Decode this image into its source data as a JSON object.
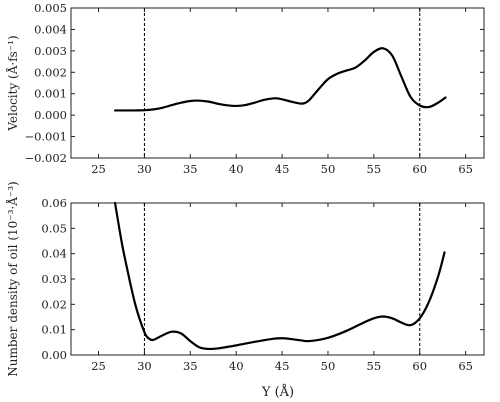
{
  "chart_data": [
    {
      "type": "line",
      "ylabel": "Velocity (Å·fs⁻¹)",
      "xlabel": "",
      "xlim": [
        22,
        67
      ],
      "ylim": [
        -0.002,
        0.005
      ],
      "xticks": [
        "25",
        "30",
        "35",
        "40",
        "45",
        "50",
        "55",
        "60",
        "65"
      ],
      "yticks": [
        "−0.002",
        "−0.001",
        "0.000",
        "0.001",
        "0.002",
        "0.003",
        "0.004",
        "0.005"
      ],
      "vertical_lines": [
        30,
        60
      ],
      "series": [
        {
          "x": [
            26.8,
            28,
            29,
            30,
            31,
            32,
            33,
            34,
            35,
            35.8,
            37,
            38,
            39,
            40,
            41,
            42,
            43,
            44,
            44.5,
            45,
            46,
            47,
            47.5,
            48,
            49,
            50,
            51,
            52,
            53,
            54,
            55,
            56,
            57,
            58,
            59,
            60,
            61,
            62,
            62.8
          ],
          "y": [
            0.00022,
            0.00022,
            0.00022,
            0.00023,
            0.00027,
            0.00035,
            0.00047,
            0.00058,
            0.00066,
            0.00068,
            0.00063,
            0.00053,
            0.00046,
            0.00043,
            0.00047,
            0.00058,
            0.00071,
            0.00078,
            0.00078,
            0.00074,
            0.00063,
            0.00054,
            0.00057,
            0.00072,
            0.00122,
            0.00168,
            0.00193,
            0.00208,
            0.00222,
            0.00255,
            0.00295,
            0.00312,
            0.00278,
            0.0018,
            0.00085,
            0.00045,
            0.00038,
            0.00058,
            0.00082
          ]
        }
      ]
    },
    {
      "type": "line",
      "ylabel": "Number density of oil (10⁻³·Å⁻³)",
      "xlabel": "Y (Å)",
      "xlim": [
        22,
        67
      ],
      "ylim": [
        0,
        0.06
      ],
      "xticks": [
        "25",
        "30",
        "35",
        "40",
        "45",
        "50",
        "55",
        "60",
        "65"
      ],
      "yticks": [
        "0.00",
        "0.01",
        "0.02",
        "0.03",
        "0.04",
        "0.05",
        "0.06"
      ],
      "vertical_lines": [
        30,
        60
      ],
      "series": [
        {
          "x": [
            26.8,
            27.5,
            28,
            29,
            30,
            30.5,
            31,
            32,
            33,
            34,
            35,
            36,
            37,
            38,
            40,
            42,
            44,
            45,
            46,
            47,
            48,
            50,
            52,
            54,
            55,
            56,
            57,
            58,
            59,
            60,
            61,
            62,
            62.7
          ],
          "y": [
            0.06,
            0.045,
            0.036,
            0.02,
            0.009,
            0.0065,
            0.006,
            0.0078,
            0.0092,
            0.0085,
            0.0055,
            0.003,
            0.0024,
            0.0026,
            0.0038,
            0.0052,
            0.0064,
            0.0066,
            0.0063,
            0.0058,
            0.0055,
            0.0068,
            0.0095,
            0.013,
            0.0145,
            0.0152,
            0.0145,
            0.0128,
            0.0118,
            0.0145,
            0.021,
            0.031,
            0.0405
          ]
        }
      ]
    }
  ]
}
